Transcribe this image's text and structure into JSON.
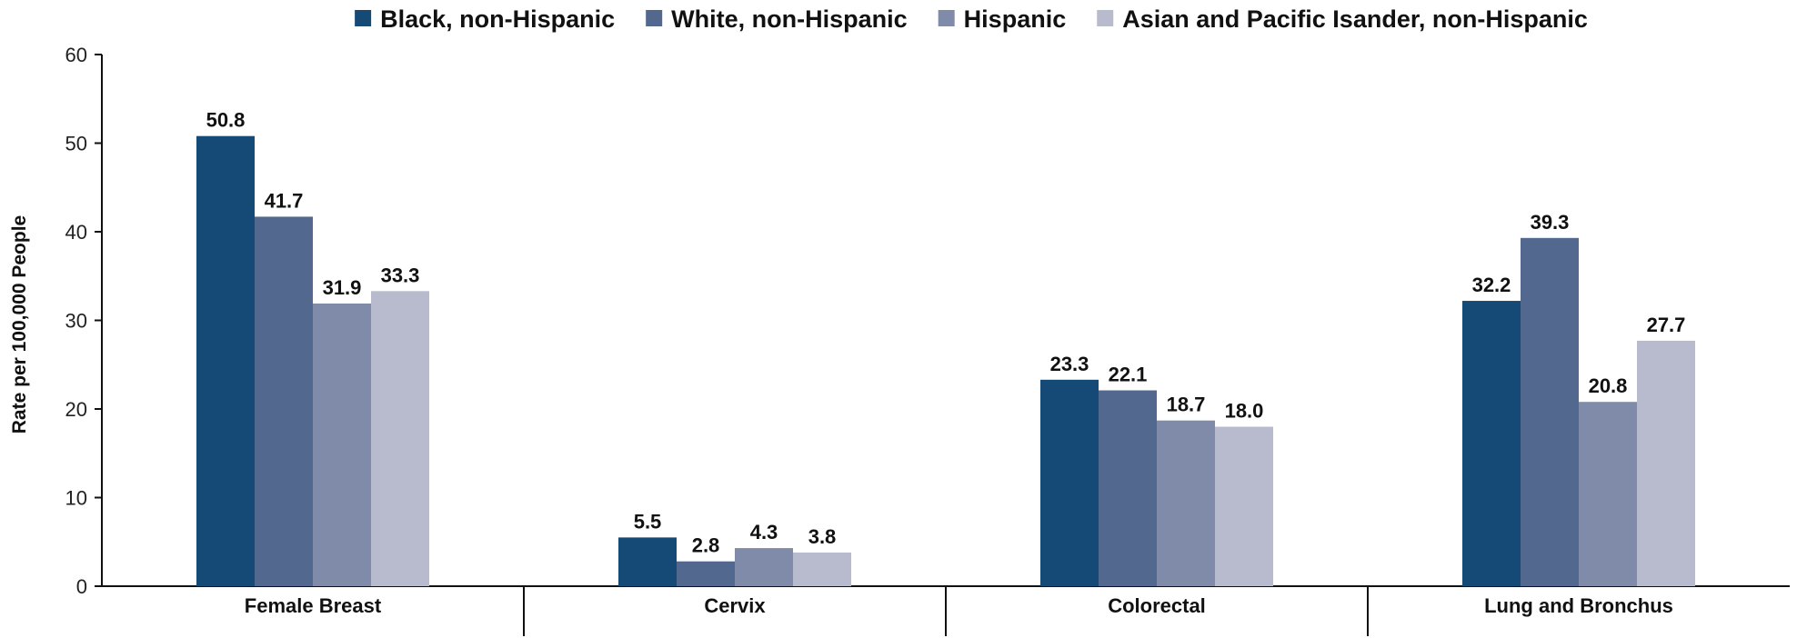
{
  "chart_data": {
    "type": "bar",
    "title": "",
    "xlabel": "",
    "ylabel": "Rate per 100,000 People",
    "ylim": [
      0,
      60
    ],
    "yticks": [
      0,
      10,
      20,
      30,
      40,
      50,
      60
    ],
    "grid": false,
    "legend_position": "top",
    "categories": [
      "Female Breast",
      "Cervix",
      "Colorectal",
      "Lung and Bronchus"
    ],
    "series": [
      {
        "name": "Black, non-Hispanic",
        "color": "#154a77",
        "values": [
          50.8,
          5.5,
          23.3,
          32.2
        ],
        "labels": [
          "50.8",
          "5.5",
          "23.3",
          "32.2"
        ]
      },
      {
        "name": "White, non-Hispanic",
        "color": "#52688f",
        "values": [
          41.7,
          2.8,
          22.1,
          39.3
        ],
        "labels": [
          "41.7",
          "2.8",
          "22.1",
          "39.3"
        ]
      },
      {
        "name": "Hispanic",
        "color": "#7f8ba8",
        "values": [
          31.9,
          4.3,
          18.7,
          20.8
        ],
        "labels": [
          "31.9",
          "4.3",
          "18.7",
          "20.8"
        ]
      },
      {
        "name": "Asian and Pacific Isander, non-Hispanic",
        "color": "#b8bbcd",
        "values": [
          33.3,
          3.8,
          18.0,
          27.7
        ],
        "labels": [
          "33.3",
          "3.8",
          "18.0",
          "27.7"
        ]
      }
    ]
  }
}
